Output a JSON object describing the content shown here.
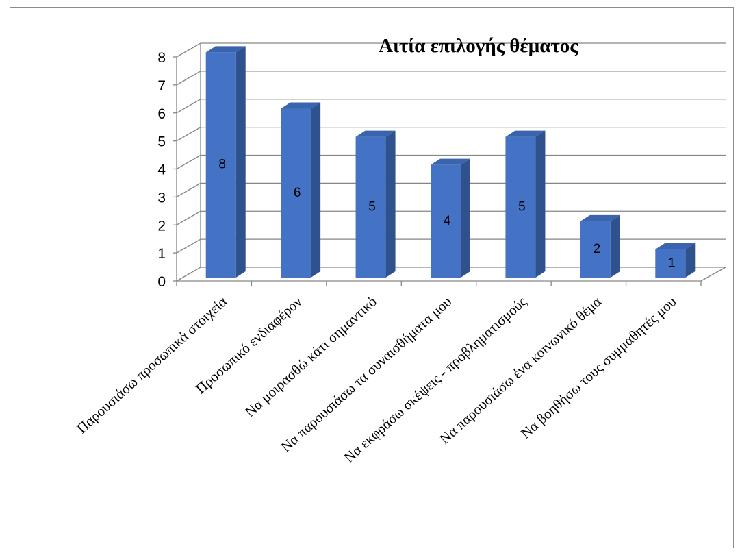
{
  "chart_data": {
    "type": "bar",
    "title": "Αιτία επιλογής θέματος",
    "xlabel": "",
    "ylabel": "",
    "categories": [
      "Παρουσιάσω προσωπικά στοιχεία",
      "Προσωπικό ενδιαφέρον",
      "Να μοιρασθώ κάτι σημαντικό",
      "Να παρουσιάσω τα συναισθήματα μου",
      "Να εκφράσω σκέψεις - προβληματισμούς",
      "Να παρουσιάσω ένα κοινωνικό θέμα",
      "Να βοηθήσω τους συμμαθητές μου"
    ],
    "values": [
      8,
      6,
      5,
      4,
      5,
      2,
      1
    ],
    "ylim": [
      0,
      8
    ],
    "yticks": [
      0,
      1,
      2,
      3,
      4,
      5,
      6,
      7,
      8
    ],
    "grid": true,
    "legend": "none",
    "style": "3d-column",
    "colors": {
      "bar_front": "#4472C4",
      "bar_side": "#2F528F",
      "bar_top": "#3A64AE",
      "gridline": "#868686",
      "frame": "#8c8c8c"
    }
  }
}
